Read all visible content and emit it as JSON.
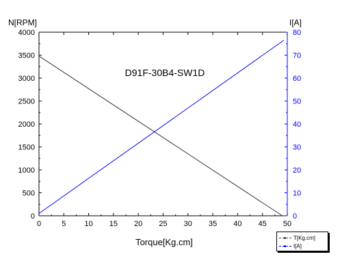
{
  "chart_data": {
    "type": "line",
    "title": "D91F-30B4-SW1D",
    "xlabel": "Torque[Kg.cm]",
    "ylabel_left": "N[RPM]",
    "ylabel_right": "I[A]",
    "xlim": [
      0,
      50
    ],
    "ylim_left": [
      0,
      4000
    ],
    "ylim_right": [
      0,
      80
    ],
    "x_ticks": [
      "0",
      "5",
      "10",
      "15",
      "20",
      "25",
      "30",
      "35",
      "40",
      "45",
      "50"
    ],
    "y_left_ticks": [
      "0",
      "500",
      "1000",
      "1500",
      "2000",
      "2500",
      "3000",
      "3500",
      "4000"
    ],
    "y_right_ticks": [
      "0",
      "10",
      "20",
      "30",
      "40",
      "50",
      "60",
      "70",
      "80"
    ],
    "grid": false,
    "legend_position": "bottom-right",
    "series": [
      {
        "name": "T[Kg.cm]",
        "axis": "left",
        "color": "#333333",
        "x": [
          0,
          49
        ],
        "values": [
          3480,
          0
        ]
      },
      {
        "name": "I[A]",
        "axis": "right",
        "color": "#0000ff",
        "x": [
          0,
          49.3
        ],
        "values": [
          1,
          76.5
        ]
      }
    ]
  },
  "colors": {
    "axis": "#000000",
    "right_axis": "#0000ff"
  }
}
